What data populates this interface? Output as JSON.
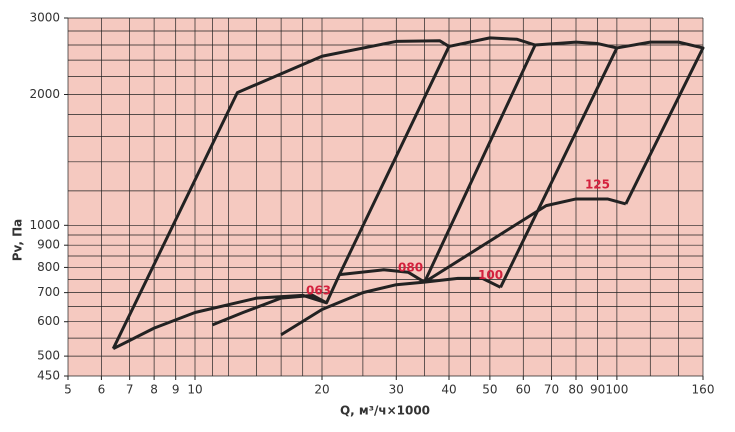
{
  "chart_data": {
    "type": "line",
    "x_label": "Q, м³/ч×1000",
    "y_label": "Pv, Па",
    "xscale": "log",
    "yscale": "log",
    "xlim": [
      5,
      160
    ],
    "ylim": [
      450,
      3000
    ],
    "xticks": [
      5,
      6,
      7,
      8,
      9,
      10,
      20,
      30,
      40,
      50,
      60,
      70,
      80,
      90,
      100,
      160
    ],
    "yticks": [
      450,
      500,
      600,
      700,
      800,
      900,
      1000,
      2000,
      3000
    ],
    "x_grid": [
      5,
      6,
      7,
      8,
      9,
      10,
      11,
      12,
      14,
      16,
      18,
      20,
      25,
      30,
      35,
      40,
      45,
      50,
      60,
      70,
      80,
      90,
      100,
      120,
      140,
      160
    ],
    "y_grid": [
      450,
      500,
      550,
      600,
      650,
      700,
      750,
      800,
      850,
      900,
      950,
      1000,
      1200,
      1400,
      1600,
      1800,
      2000,
      2200,
      2400,
      2600,
      2800,
      3000
    ],
    "background": "#f5c9c0",
    "label_color": "#d4213d",
    "series": [
      {
        "name": "063",
        "color": "#222222",
        "paths": [
          {
            "x": [
              6.4,
              12.6,
              20,
              30,
              38,
              40,
              22,
              20.5,
              18,
              14,
              10,
              8,
              6.4
            ],
            "y": [
              520,
              2020,
              2450,
              2650,
              2660,
              2580,
              770,
              663,
              690,
              680,
              630,
              580,
              520
            ]
          },
          {
            "x": [
              11,
              13,
              16,
              19,
              20.5
            ],
            "y": [
              590,
              630,
              680,
              690,
              663
            ]
          }
        ]
      },
      {
        "name": "080",
        "color": "#222222",
        "paths": [
          {
            "x": [
              40,
              50,
              58,
              64,
              35
            ],
            "y": [
              2580,
              2700,
              2680,
              2600,
              740
            ]
          },
          {
            "x": [
              16,
              20,
              25,
              30,
              35
            ],
            "y": [
              560,
              640,
              700,
              730,
              740
            ]
          },
          {
            "x": [
              22,
              28,
              32,
              35
            ],
            "y": [
              770,
              790,
              780,
              740
            ]
          }
        ]
      },
      {
        "name": "100",
        "color": "#222222",
        "paths": [
          {
            "x": [
              64,
              80,
              90,
              100,
              53
            ],
            "y": [
              2600,
              2640,
              2620,
              2560,
              720
            ]
          },
          {
            "x": [
              35,
              42,
              48,
              53
            ],
            "y": [
              740,
              755,
              755,
              720
            ]
          }
        ]
      },
      {
        "name": "125",
        "color": "#222222",
        "paths": [
          {
            "x": [
              100,
              120,
              140,
              160,
              105
            ],
            "y": [
              2560,
              2640,
              2640,
              2560,
              1120
            ]
          },
          {
            "x": [
              35,
              68,
              80,
              95,
              105
            ],
            "y": [
              740,
              1110,
              1150,
              1150,
              1120
            ]
          }
        ]
      }
    ]
  }
}
